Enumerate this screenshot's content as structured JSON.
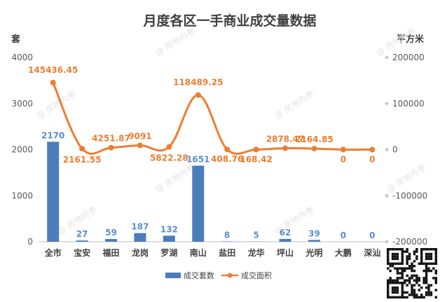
{
  "chart_data": {
    "type": "bar+line",
    "title": "月度各区一手商业成交量数据",
    "watermark": "@ 房地内参",
    "categories": [
      "全市",
      "宝安",
      "福田",
      "龙岗",
      "罗湖",
      "南山",
      "盐田",
      "龙华",
      "坪山",
      "光明",
      "大鹏",
      "深汕"
    ],
    "series": [
      {
        "name": "成交套数",
        "type": "bar",
        "axis": "left",
        "color": "#4a7ebb",
        "values": [
          2170,
          27,
          59,
          187,
          132,
          1651,
          8,
          5,
          62,
          39,
          0,
          0
        ],
        "labels": [
          "2170",
          "27",
          "59",
          "187",
          "132",
          "1651",
          "8",
          "5",
          "62",
          "39",
          "0",
          "0"
        ]
      },
      {
        "name": "成交面积",
        "type": "line",
        "axis": "right",
        "color": "#ed7d31",
        "values": [
          145436.45,
          2161.55,
          4251.87,
          9091,
          5822.28,
          118489.25,
          408.76,
          168.42,
          2878.47,
          2164.85,
          0,
          0
        ],
        "labels": [
          "145436.45",
          "2161.55",
          "4251.87",
          "9091",
          "5822.28",
          "118489.25",
          "408.76",
          "168.42",
          "2878.47",
          "2164.85",
          "0",
          "0"
        ]
      }
    ],
    "y_left": {
      "label": "套",
      "range": [
        0,
        4000
      ],
      "ticks": [
        "0",
        "1000",
        "2000",
        "3000",
        "4000"
      ]
    },
    "y_right": {
      "label": "平方米",
      "range": [
        -200000,
        200000
      ],
      "ticks": [
        "-200000",
        "-100000",
        "0",
        "100000",
        "200000"
      ]
    },
    "grid": false,
    "legend_position": "bottom"
  }
}
